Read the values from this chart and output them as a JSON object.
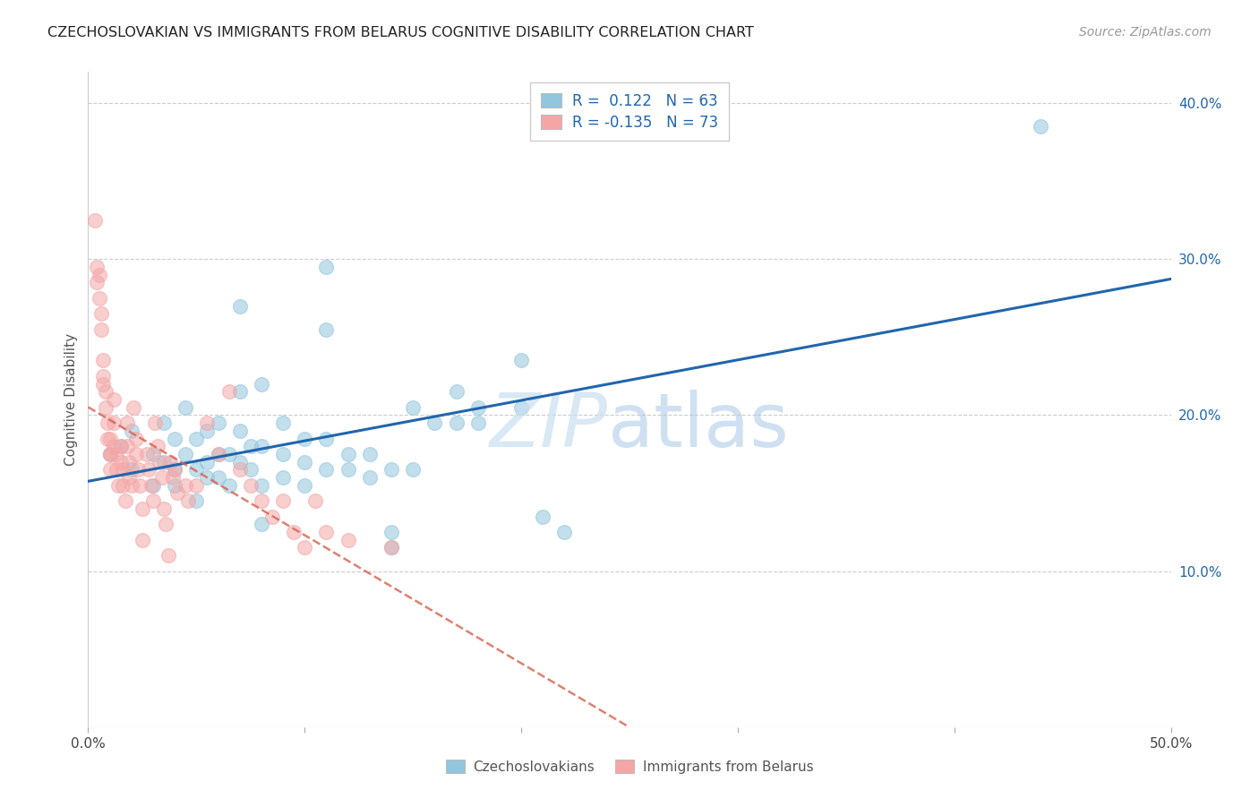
{
  "title": "CZECHOSLOVAKIAN VS IMMIGRANTS FROM BELARUS COGNITIVE DISABILITY CORRELATION CHART",
  "source": "Source: ZipAtlas.com",
  "ylabel": "Cognitive Disability",
  "xlim": [
    0.0,
    0.5
  ],
  "ylim": [
    0.0,
    0.42
  ],
  "yticks": [
    0.1,
    0.2,
    0.3,
    0.4
  ],
  "ytick_labels": [
    "10.0%",
    "20.0%",
    "30.0%",
    "40.0%"
  ],
  "legend_blue_r": "0.122",
  "legend_blue_n": "63",
  "legend_pink_r": "-0.135",
  "legend_pink_n": "73",
  "blue_color": "#92c5de",
  "pink_color": "#f4a6a6",
  "trendline_blue_color": "#2166ac",
  "trendline_pink_color": "#d6604d",
  "blue_scatter": [
    [
      0.01,
      0.175
    ],
    [
      0.015,
      0.18
    ],
    [
      0.02,
      0.19
    ],
    [
      0.02,
      0.165
    ],
    [
      0.03,
      0.175
    ],
    [
      0.03,
      0.155
    ],
    [
      0.035,
      0.195
    ],
    [
      0.035,
      0.17
    ],
    [
      0.04,
      0.185
    ],
    [
      0.04,
      0.165
    ],
    [
      0.04,
      0.155
    ],
    [
      0.045,
      0.205
    ],
    [
      0.045,
      0.175
    ],
    [
      0.05,
      0.185
    ],
    [
      0.05,
      0.165
    ],
    [
      0.05,
      0.145
    ],
    [
      0.055,
      0.19
    ],
    [
      0.055,
      0.17
    ],
    [
      0.055,
      0.16
    ],
    [
      0.06,
      0.195
    ],
    [
      0.06,
      0.175
    ],
    [
      0.06,
      0.16
    ],
    [
      0.065,
      0.175
    ],
    [
      0.065,
      0.155
    ],
    [
      0.07,
      0.27
    ],
    [
      0.07,
      0.215
    ],
    [
      0.07,
      0.19
    ],
    [
      0.07,
      0.17
    ],
    [
      0.075,
      0.18
    ],
    [
      0.075,
      0.165
    ],
    [
      0.08,
      0.22
    ],
    [
      0.08,
      0.18
    ],
    [
      0.08,
      0.155
    ],
    [
      0.08,
      0.13
    ],
    [
      0.09,
      0.195
    ],
    [
      0.09,
      0.175
    ],
    [
      0.09,
      0.16
    ],
    [
      0.1,
      0.185
    ],
    [
      0.1,
      0.17
    ],
    [
      0.1,
      0.155
    ],
    [
      0.11,
      0.295
    ],
    [
      0.11,
      0.255
    ],
    [
      0.11,
      0.185
    ],
    [
      0.11,
      0.165
    ],
    [
      0.12,
      0.175
    ],
    [
      0.12,
      0.165
    ],
    [
      0.13,
      0.175
    ],
    [
      0.13,
      0.16
    ],
    [
      0.14,
      0.165
    ],
    [
      0.14,
      0.125
    ],
    [
      0.14,
      0.115
    ],
    [
      0.15,
      0.205
    ],
    [
      0.15,
      0.165
    ],
    [
      0.16,
      0.195
    ],
    [
      0.17,
      0.215
    ],
    [
      0.17,
      0.195
    ],
    [
      0.18,
      0.205
    ],
    [
      0.18,
      0.195
    ],
    [
      0.2,
      0.235
    ],
    [
      0.2,
      0.205
    ],
    [
      0.21,
      0.135
    ],
    [
      0.22,
      0.125
    ],
    [
      0.44,
      0.385
    ]
  ],
  "pink_scatter": [
    [
      0.003,
      0.325
    ],
    [
      0.004,
      0.295
    ],
    [
      0.004,
      0.285
    ],
    [
      0.005,
      0.29
    ],
    [
      0.005,
      0.275
    ],
    [
      0.006,
      0.265
    ],
    [
      0.006,
      0.255
    ],
    [
      0.007,
      0.235
    ],
    [
      0.007,
      0.225
    ],
    [
      0.007,
      0.22
    ],
    [
      0.008,
      0.215
    ],
    [
      0.008,
      0.205
    ],
    [
      0.009,
      0.195
    ],
    [
      0.009,
      0.185
    ],
    [
      0.01,
      0.185
    ],
    [
      0.01,
      0.175
    ],
    [
      0.01,
      0.175
    ],
    [
      0.01,
      0.165
    ],
    [
      0.012,
      0.21
    ],
    [
      0.012,
      0.195
    ],
    [
      0.012,
      0.18
    ],
    [
      0.013,
      0.175
    ],
    [
      0.013,
      0.165
    ],
    [
      0.014,
      0.155
    ],
    [
      0.015,
      0.18
    ],
    [
      0.015,
      0.17
    ],
    [
      0.016,
      0.165
    ],
    [
      0.016,
      0.155
    ],
    [
      0.017,
      0.145
    ],
    [
      0.018,
      0.195
    ],
    [
      0.018,
      0.18
    ],
    [
      0.019,
      0.17
    ],
    [
      0.019,
      0.16
    ],
    [
      0.02,
      0.155
    ],
    [
      0.021,
      0.205
    ],
    [
      0.022,
      0.185
    ],
    [
      0.022,
      0.175
    ],
    [
      0.023,
      0.165
    ],
    [
      0.024,
      0.155
    ],
    [
      0.025,
      0.14
    ],
    [
      0.025,
      0.12
    ],
    [
      0.027,
      0.175
    ],
    [
      0.028,
      0.165
    ],
    [
      0.029,
      0.155
    ],
    [
      0.03,
      0.145
    ],
    [
      0.031,
      0.195
    ],
    [
      0.032,
      0.18
    ],
    [
      0.033,
      0.17
    ],
    [
      0.034,
      0.16
    ],
    [
      0.035,
      0.14
    ],
    [
      0.036,
      0.13
    ],
    [
      0.037,
      0.11
    ],
    [
      0.038,
      0.17
    ],
    [
      0.039,
      0.16
    ],
    [
      0.04,
      0.165
    ],
    [
      0.041,
      0.15
    ],
    [
      0.045,
      0.155
    ],
    [
      0.046,
      0.145
    ],
    [
      0.05,
      0.155
    ],
    [
      0.055,
      0.195
    ],
    [
      0.06,
      0.175
    ],
    [
      0.065,
      0.215
    ],
    [
      0.07,
      0.165
    ],
    [
      0.075,
      0.155
    ],
    [
      0.08,
      0.145
    ],
    [
      0.085,
      0.135
    ],
    [
      0.09,
      0.145
    ],
    [
      0.095,
      0.125
    ],
    [
      0.1,
      0.115
    ],
    [
      0.105,
      0.145
    ],
    [
      0.11,
      0.125
    ],
    [
      0.12,
      0.12
    ],
    [
      0.14,
      0.115
    ]
  ]
}
